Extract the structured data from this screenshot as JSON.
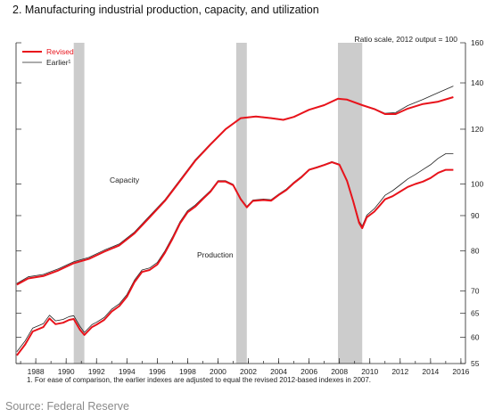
{
  "title": "2. Manufacturing industrial production, capacity, and utilization",
  "footnote": "1. For ease of comparison, the earlier indexes are adjusted to equal the revised 2012-based indexes in 2007.",
  "source": "Source: Federal Reserve",
  "chart_data": {
    "type": "line",
    "scale_note": "Ratio scale, 2012 output = 100",
    "y_scale": "log",
    "ylim": [
      55,
      160
    ],
    "xlim": [
      1986.7,
      2016.3
    ],
    "x_ticks": [
      "1988",
      "1990",
      "1992",
      "1994",
      "1996",
      "1998",
      "2000",
      "2002",
      "2004",
      "2006",
      "2008",
      "2010",
      "2012",
      "2014",
      "2016"
    ],
    "y_ticks": [
      "55",
      "60",
      "65",
      "70",
      "80",
      "90",
      "100",
      "120",
      "140",
      "160"
    ],
    "recessions": [
      [
        1990.5,
        1991.2
      ],
      [
        2001.2,
        2001.9
      ],
      [
        2007.9,
        2009.5
      ]
    ],
    "legend": [
      "Revised",
      "Earlier¹"
    ],
    "series_labels": [
      "Capacity",
      "Production"
    ],
    "colors": {
      "revised": "#e8131b",
      "earlier": "#222222",
      "recession": "#cccccc",
      "axis": "#222222"
    },
    "series": [
      {
        "name": "Revised",
        "line": "capacity",
        "points": [
          [
            1986.75,
            71.5
          ],
          [
            1987.5,
            73.0
          ],
          [
            1988.5,
            73.6
          ],
          [
            1989.5,
            75.0
          ],
          [
            1990.5,
            76.8
          ],
          [
            1991.5,
            77.9
          ],
          [
            1992.5,
            79.8
          ],
          [
            1993.5,
            81.5
          ],
          [
            1994.5,
            84.8
          ],
          [
            1995.5,
            89.5
          ],
          [
            1996.5,
            94.5
          ],
          [
            1997.5,
            101.0
          ],
          [
            1998.5,
            108.0
          ],
          [
            1999.5,
            114.0
          ],
          [
            2000.5,
            120.0
          ],
          [
            2001.5,
            124.5
          ],
          [
            2002.5,
            125.2
          ],
          [
            2003.5,
            124.5
          ],
          [
            2004.3,
            123.8
          ],
          [
            2005.0,
            125.0
          ],
          [
            2006.0,
            128.0
          ],
          [
            2007.0,
            130.0
          ],
          [
            2007.9,
            132.8
          ],
          [
            2008.5,
            132.4
          ],
          [
            2009.5,
            130.0
          ],
          [
            2010.3,
            128.3
          ],
          [
            2011.0,
            126.2
          ],
          [
            2011.7,
            126.2
          ],
          [
            2012.5,
            128.5
          ],
          [
            2013.5,
            130.5
          ],
          [
            2014.5,
            131.5
          ],
          [
            2015.5,
            133.5
          ]
        ]
      },
      {
        "name": "Earlier¹",
        "line": "capacity",
        "points": [
          [
            1986.75,
            71.8
          ],
          [
            1987.5,
            73.4
          ],
          [
            1988.5,
            74.0
          ],
          [
            1989.5,
            75.4
          ],
          [
            1990.5,
            77.2
          ],
          [
            1991.5,
            78.3
          ],
          [
            1992.5,
            80.2
          ],
          [
            1993.5,
            81.9
          ],
          [
            1994.5,
            85.2
          ],
          [
            1995.5,
            89.9
          ],
          [
            1996.5,
            94.9
          ],
          [
            1997.5,
            101.4
          ],
          [
            1998.5,
            108.4
          ],
          [
            1999.5,
            114.3
          ],
          [
            2000.5,
            120.2
          ],
          [
            2001.5,
            124.6
          ],
          [
            2002.5,
            125.3
          ],
          [
            2003.5,
            124.6
          ],
          [
            2004.3,
            123.9
          ],
          [
            2005.0,
            125.1
          ],
          [
            2006.0,
            128.1
          ],
          [
            2007.0,
            130.1
          ],
          [
            2007.9,
            132.9
          ],
          [
            2008.5,
            132.5
          ],
          [
            2009.5,
            130.1
          ],
          [
            2010.3,
            128.5
          ],
          [
            2011.0,
            126.5
          ],
          [
            2011.7,
            126.8
          ],
          [
            2012.5,
            129.8
          ],
          [
            2013.5,
            132.5
          ],
          [
            2014.5,
            135.5
          ],
          [
            2015.5,
            138.5
          ]
        ]
      },
      {
        "name": "Revised",
        "line": "production",
        "points": [
          [
            1986.75,
            56.5
          ],
          [
            1987.3,
            58.6
          ],
          [
            1987.8,
            61.2
          ],
          [
            1988.5,
            62.1
          ],
          [
            1988.9,
            63.9
          ],
          [
            1989.3,
            62.7
          ],
          [
            1989.8,
            63.0
          ],
          [
            1990.2,
            63.6
          ],
          [
            1990.5,
            63.8
          ],
          [
            1990.9,
            61.6
          ],
          [
            1991.2,
            60.5
          ],
          [
            1991.7,
            62.1
          ],
          [
            1992.0,
            62.6
          ],
          [
            1992.5,
            63.6
          ],
          [
            1993.0,
            65.4
          ],
          [
            1993.5,
            66.6
          ],
          [
            1994.0,
            68.7
          ],
          [
            1994.5,
            72.1
          ],
          [
            1995.0,
            74.6
          ],
          [
            1995.5,
            75.1
          ],
          [
            1996.0,
            76.5
          ],
          [
            1996.5,
            79.5
          ],
          [
            1997.0,
            83.3
          ],
          [
            1997.5,
            87.7
          ],
          [
            1998.0,
            91.0
          ],
          [
            1998.5,
            92.7
          ],
          [
            1999.0,
            95.1
          ],
          [
            1999.5,
            97.4
          ],
          [
            2000.0,
            100.8
          ],
          [
            2000.5,
            100.8
          ],
          [
            2001.0,
            99.6
          ],
          [
            2001.5,
            95.0
          ],
          [
            2001.9,
            92.5
          ],
          [
            2002.3,
            94.5
          ],
          [
            2003.0,
            94.8
          ],
          [
            2003.5,
            94.6
          ],
          [
            2004.0,
            96.4
          ],
          [
            2004.5,
            98.0
          ],
          [
            2005.0,
            100.3
          ],
          [
            2005.5,
            102.3
          ],
          [
            2006.0,
            104.8
          ],
          [
            2006.5,
            105.6
          ],
          [
            2007.0,
            106.5
          ],
          [
            2007.5,
            107.5
          ],
          [
            2008.0,
            106.6
          ],
          [
            2008.5,
            101.0
          ],
          [
            2008.9,
            94.5
          ],
          [
            2009.3,
            87.8
          ],
          [
            2009.5,
            86.3
          ],
          [
            2009.8,
            89.5
          ],
          [
            2010.3,
            91.2
          ],
          [
            2010.7,
            93.3
          ],
          [
            2011.0,
            95.0
          ],
          [
            2011.5,
            96.0
          ],
          [
            2012.0,
            97.5
          ],
          [
            2012.5,
            99.0
          ],
          [
            2013.0,
            100.0
          ],
          [
            2013.5,
            100.8
          ],
          [
            2014.0,
            102.0
          ],
          [
            2014.5,
            103.8
          ],
          [
            2015.0,
            104.8
          ],
          [
            2015.5,
            104.8
          ]
        ]
      },
      {
        "name": "Earlier¹",
        "line": "production",
        "points": [
          [
            1986.75,
            57.2
          ],
          [
            1987.3,
            59.3
          ],
          [
            1987.8,
            61.9
          ],
          [
            1988.5,
            62.8
          ],
          [
            1988.9,
            64.6
          ],
          [
            1989.3,
            63.4
          ],
          [
            1989.8,
            63.7
          ],
          [
            1990.2,
            64.3
          ],
          [
            1990.5,
            64.5
          ],
          [
            1990.9,
            62.3
          ],
          [
            1991.2,
            61.0
          ],
          [
            1991.7,
            62.6
          ],
          [
            1992.0,
            63.1
          ],
          [
            1992.5,
            64.1
          ],
          [
            1993.0,
            65.9
          ],
          [
            1993.5,
            67.1
          ],
          [
            1994.0,
            69.2
          ],
          [
            1994.5,
            72.6
          ],
          [
            1995.0,
            75.1
          ],
          [
            1995.5,
            75.6
          ],
          [
            1996.0,
            77.0
          ],
          [
            1996.5,
            80.0
          ],
          [
            1997.0,
            83.8
          ],
          [
            1997.5,
            88.2
          ],
          [
            1998.0,
            91.5
          ],
          [
            1998.5,
            93.2
          ],
          [
            1999.0,
            95.5
          ],
          [
            1999.5,
            97.8
          ],
          [
            2000.0,
            101.1
          ],
          [
            2000.5,
            101.1
          ],
          [
            2001.0,
            99.9
          ],
          [
            2001.5,
            95.3
          ],
          [
            2001.9,
            92.8
          ],
          [
            2002.3,
            94.8
          ],
          [
            2003.0,
            95.1
          ],
          [
            2003.5,
            94.9
          ],
          [
            2004.0,
            96.7
          ],
          [
            2004.5,
            98.3
          ],
          [
            2005.0,
            100.6
          ],
          [
            2005.5,
            102.6
          ],
          [
            2006.0,
            105.0
          ],
          [
            2006.5,
            105.8
          ],
          [
            2007.0,
            106.7
          ],
          [
            2007.5,
            107.7
          ],
          [
            2008.0,
            106.8
          ],
          [
            2008.5,
            101.3
          ],
          [
            2008.9,
            94.9
          ],
          [
            2009.3,
            88.3
          ],
          [
            2009.5,
            86.9
          ],
          [
            2009.8,
            90.1
          ],
          [
            2010.3,
            92.1
          ],
          [
            2010.7,
            94.4
          ],
          [
            2011.0,
            96.3
          ],
          [
            2011.5,
            97.8
          ],
          [
            2012.0,
            99.7
          ],
          [
            2012.5,
            101.7
          ],
          [
            2013.0,
            103.2
          ],
          [
            2013.5,
            104.9
          ],
          [
            2014.0,
            106.6
          ],
          [
            2014.5,
            108.9
          ],
          [
            2015.0,
            110.6
          ],
          [
            2015.5,
            110.6
          ]
        ]
      }
    ]
  }
}
